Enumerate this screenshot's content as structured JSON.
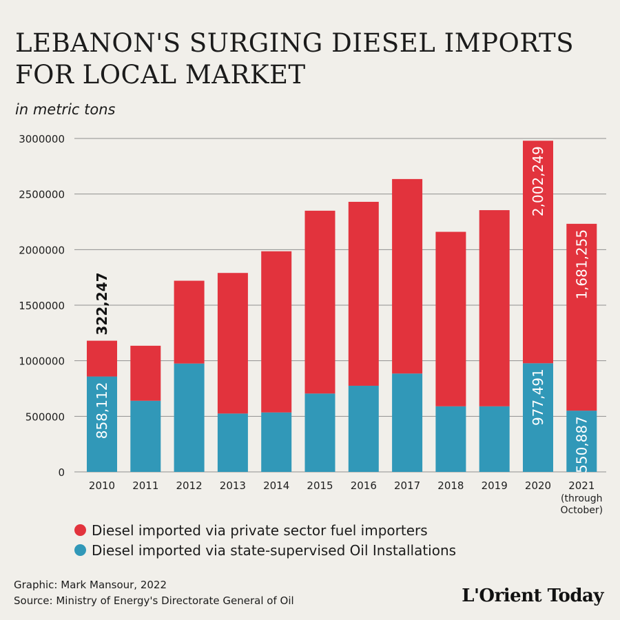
{
  "header": {
    "title_line1": "LEBANON'S SURGING DIESEL IMPORTS",
    "title_line2": "FOR LOCAL MARKET",
    "subtitle": "in metric tons"
  },
  "chart_data": {
    "type": "bar",
    "stacked": true,
    "categories": [
      "2010",
      "2011",
      "2012",
      "2013",
      "2014",
      "2015",
      "2016",
      "2017",
      "2018",
      "2019",
      "2020",
      "2021"
    ],
    "category_sublabels": {
      "2021": [
        "(through",
        "October)"
      ]
    },
    "series": [
      {
        "name": "Diesel imported via state-supervised Oil Installations",
        "color": "#3198b8",
        "values": [
          858112,
          640000,
          975000,
          525000,
          535000,
          705000,
          775000,
          885000,
          590000,
          590000,
          977491,
          550887
        ]
      },
      {
        "name": "Diesel imported via private sector fuel importers",
        "color": "#e2333d",
        "values": [
          322247,
          495000,
          745000,
          1265000,
          1450000,
          1645000,
          1655000,
          1750000,
          1570000,
          1765000,
          2002249,
          1681255
        ]
      }
    ],
    "data_labels": [
      {
        "category": "2010",
        "series": 0,
        "text": "858,112",
        "position": "inside"
      },
      {
        "category": "2010",
        "series": 1,
        "text": "322,247",
        "position": "above"
      },
      {
        "category": "2020",
        "series": 0,
        "text": "977,491",
        "position": "inside"
      },
      {
        "category": "2020",
        "series": 1,
        "text": "2,002,249",
        "position": "inside"
      },
      {
        "category": "2021",
        "series": 0,
        "text": "550,887",
        "position": "inside"
      },
      {
        "category": "2021",
        "series": 1,
        "text": "1,681,255",
        "position": "inside"
      }
    ],
    "yticks": [
      0,
      500000,
      1000000,
      1500000,
      2000000,
      2500000,
      3000000
    ],
    "ytick_labels": [
      "0",
      "500000",
      "1000000",
      "1500000",
      "2000000",
      "2500000",
      "3000000"
    ],
    "ylim": [
      0,
      3000000
    ],
    "grid": true,
    "legend_placement": "bottom-left",
    "xlabel": "",
    "ylabel": ""
  },
  "legend": [
    {
      "label": "Diesel imported via private sector fuel importers",
      "color": "#e2333d"
    },
    {
      "label": "Diesel imported via state-supervised Oil Installations",
      "color": "#3198b8"
    }
  ],
  "footer": {
    "graphic_credit": "Graphic: Mark Mansour, 2022",
    "source": "Source: Ministry of Energy's Directorate General of Oil",
    "logo": "L'Orient Today"
  }
}
